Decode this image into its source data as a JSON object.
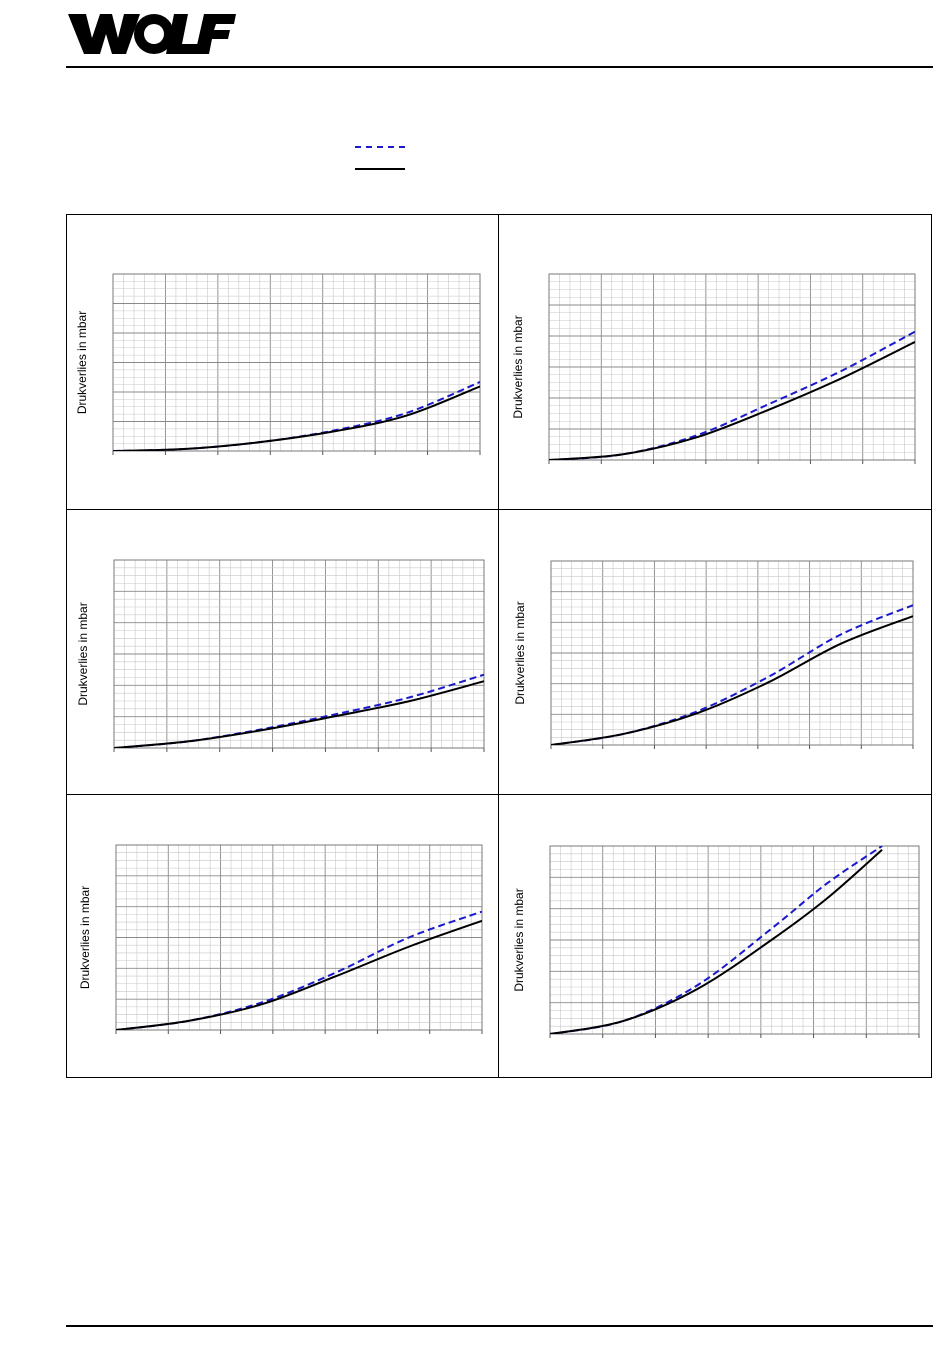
{
  "brand": {
    "logo_text": "WOLF"
  },
  "legend": [
    {
      "style": "dashed",
      "color": "#1a1acc"
    },
    {
      "style": "solid",
      "color": "#000000"
    }
  ],
  "chart_data": [
    {
      "type": "line",
      "ylabel": "Drukverlies in mbar",
      "grid": true,
      "x": [
        0,
        0.2,
        0.4,
        0.6,
        0.8,
        1.0
      ],
      "series": [
        {
          "style": "dashed",
          "color": "#1a1acc",
          "values": [
            0,
            0.012,
            0.05,
            0.115,
            0.215,
            0.39
          ]
        },
        {
          "style": "solid",
          "color": "#000000",
          "values": [
            0,
            0.012,
            0.05,
            0.11,
            0.2,
            0.365
          ]
        }
      ],
      "ylim": [
        0,
        1
      ]
    },
    {
      "type": "line",
      "ylabel": "Drukverlies in mbar",
      "grid": true,
      "x": [
        0,
        0.2,
        0.4,
        0.6,
        0.8,
        1.0
      ],
      "series": [
        {
          "style": "dashed",
          "color": "#1a1acc",
          "values": [
            0,
            0.03,
            0.13,
            0.3,
            0.48,
            0.69
          ]
        },
        {
          "style": "solid",
          "color": "#000000",
          "values": [
            0,
            0.03,
            0.12,
            0.27,
            0.44,
            0.635
          ]
        }
      ],
      "ylim": [
        0,
        1
      ]
    },
    {
      "type": "line",
      "ylabel": "Drukverlies in mbar",
      "grid": true,
      "x": [
        0,
        0.2,
        0.4,
        0.6,
        0.8,
        1.0
      ],
      "series": [
        {
          "style": "dashed",
          "color": "#1a1acc",
          "values": [
            0,
            0.035,
            0.1,
            0.18,
            0.27,
            0.39
          ]
        },
        {
          "style": "solid",
          "color": "#000000",
          "values": [
            0,
            0.035,
            0.095,
            0.17,
            0.25,
            0.355
          ]
        }
      ],
      "ylim": [
        0,
        1
      ]
    },
    {
      "type": "line",
      "ylabel": "Drukverlies in mbar",
      "grid": true,
      "x": [
        0,
        0.2,
        0.4,
        0.6,
        0.8,
        1.0
      ],
      "series": [
        {
          "style": "dashed",
          "color": "#1a1acc",
          "values": [
            0,
            0.06,
            0.18,
            0.37,
            0.6,
            0.76
          ]
        },
        {
          "style": "solid",
          "color": "#000000",
          "values": [
            0,
            0.06,
            0.17,
            0.34,
            0.55,
            0.7
          ]
        }
      ],
      "ylim": [
        0,
        1
      ]
    },
    {
      "type": "line",
      "ylabel": "Drukverlies in mbar",
      "grid": true,
      "x": [
        0,
        0.2,
        0.4,
        0.6,
        0.8,
        1.0
      ],
      "series": [
        {
          "style": "dashed",
          "color": "#1a1acc",
          "values": [
            0,
            0.05,
            0.15,
            0.31,
            0.5,
            0.64
          ]
        },
        {
          "style": "solid",
          "color": "#000000",
          "values": [
            0,
            0.05,
            0.14,
            0.29,
            0.45,
            0.59
          ]
        }
      ],
      "ylim": [
        0,
        1
      ]
    },
    {
      "type": "line",
      "ylabel": "Drukverlies in mbar",
      "grid": true,
      "x": [
        0,
        0.2,
        0.4,
        0.6,
        0.75,
        0.9
      ],
      "series": [
        {
          "style": "dashed",
          "color": "#1a1acc",
          "values": [
            0,
            0.07,
            0.26,
            0.56,
            0.8,
            1.0
          ]
        },
        {
          "style": "solid",
          "color": "#000000",
          "values": [
            0,
            0.07,
            0.24,
            0.5,
            0.72,
            0.98
          ]
        }
      ],
      "ylim": [
        0,
        1
      ]
    }
  ]
}
